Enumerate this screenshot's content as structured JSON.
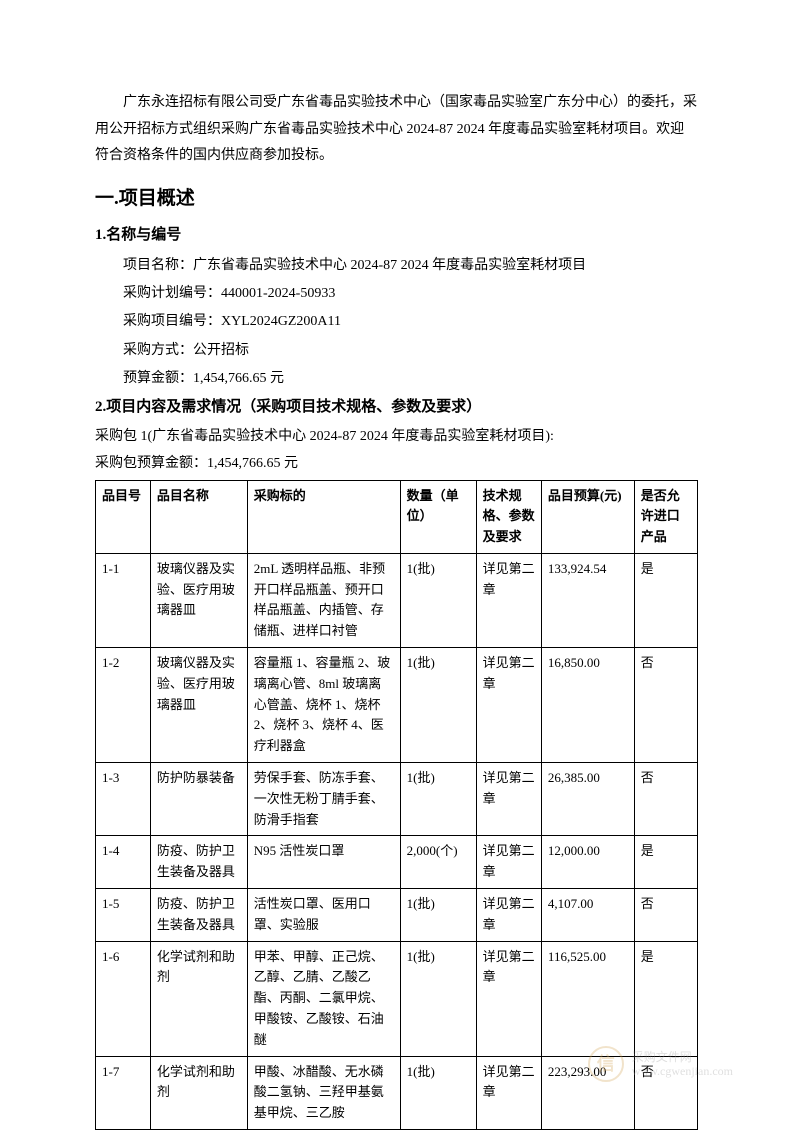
{
  "intro": "广东永连招标有限公司受广东省毒品实验技术中心（国家毒品实验室广东分中心）的委托，采用公开招标方式组织采购广东省毒品实验技术中心 2024-87 2024 年度毒品实验室耗材项目。欢迎符合资格条件的国内供应商参加投标。",
  "section1": {
    "heading": "一.项目概述",
    "sub1": {
      "title": "1.名称与编号",
      "project_name_label": "项目名称：",
      "project_name": "广东省毒品实验技术中心 2024-87 2024 年度毒品实验室耗材项目",
      "plan_code_label": "采购计划编号：",
      "plan_code": "440001-2024-50933",
      "project_code_label": "采购项目编号：",
      "project_code": "XYL2024GZ200A11",
      "method_label": "采购方式：",
      "method": "公开招标",
      "budget_label": "预算金额：",
      "budget": "1,454,766.65 元"
    },
    "sub2": {
      "title": "2.项目内容及需求情况（采购项目技术规格、参数及要求）",
      "package_line": "采购包 1(广东省毒品实验技术中心 2024-87 2024 年度毒品实验室耗材项目):",
      "package_budget": "采购包预算金额：1,454,766.65 元"
    }
  },
  "table": {
    "headers": [
      "品目号",
      "品目名称",
      "采购标的",
      "数量（单位）",
      "技术规格、参数及要求",
      "品目预算(元)",
      "是否允许进口产品"
    ],
    "rows": [
      {
        "id": "1-1",
        "name": "玻璃仪器及实验、医疗用玻璃器皿",
        "target": "2mL 透明样品瓶、非预开口样品瓶盖、预开口样品瓶盖、内插管、存储瓶、进样口衬管",
        "qty": "1(批)",
        "spec": "详见第二章",
        "budget": "133,924.54",
        "import": "是"
      },
      {
        "id": "1-2",
        "name": "玻璃仪器及实验、医疗用玻璃器皿",
        "target": "容量瓶 1、容量瓶 2、玻璃离心管、8ml 玻璃离心管盖、烧杯 1、烧杯 2、烧杯 3、烧杯 4、医疗利器盒",
        "qty": "1(批)",
        "spec": "详见第二章",
        "budget": "16,850.00",
        "import": "否"
      },
      {
        "id": "1-3",
        "name": "防护防暴装备",
        "target": "劳保手套、防冻手套、一次性无粉丁腈手套、防滑手指套",
        "qty": "1(批)",
        "spec": "详见第二章",
        "budget": "26,385.00",
        "import": "否"
      },
      {
        "id": "1-4",
        "name": "防疫、防护卫生装备及器具",
        "target": "N95 活性炭口罩",
        "qty": "2,000(个)",
        "spec": "详见第二章",
        "budget": "12,000.00",
        "import": "是"
      },
      {
        "id": "1-5",
        "name": "防疫、防护卫生装备及器具",
        "target": "活性炭口罩、医用口罩、实验服",
        "qty": "1(批)",
        "spec": "详见第二章",
        "budget": "4,107.00",
        "import": "否"
      },
      {
        "id": "1-6",
        "name": "化学试剂和助剂",
        "target": "甲苯、甲醇、正己烷、乙醇、乙腈、乙酸乙酯、丙酮、二氯甲烷、甲酸铵、乙酸铵、石油醚",
        "qty": "1(批)",
        "spec": "详见第二章",
        "budget": "116,525.00",
        "import": "是"
      },
      {
        "id": "1-7",
        "name": "化学试剂和助剂",
        "target": "甲酸、冰醋酸、无水磷酸二氢钠、三羟甲基氨基甲烷、三乙胺",
        "qty": "1(批)",
        "spec": "详见第二章",
        "budget": "223,293.00",
        "import": "否"
      }
    ]
  },
  "watermark": {
    "icon_text": "信",
    "line1": "采购文件网",
    "line2": "www.cgwenjian.com"
  }
}
